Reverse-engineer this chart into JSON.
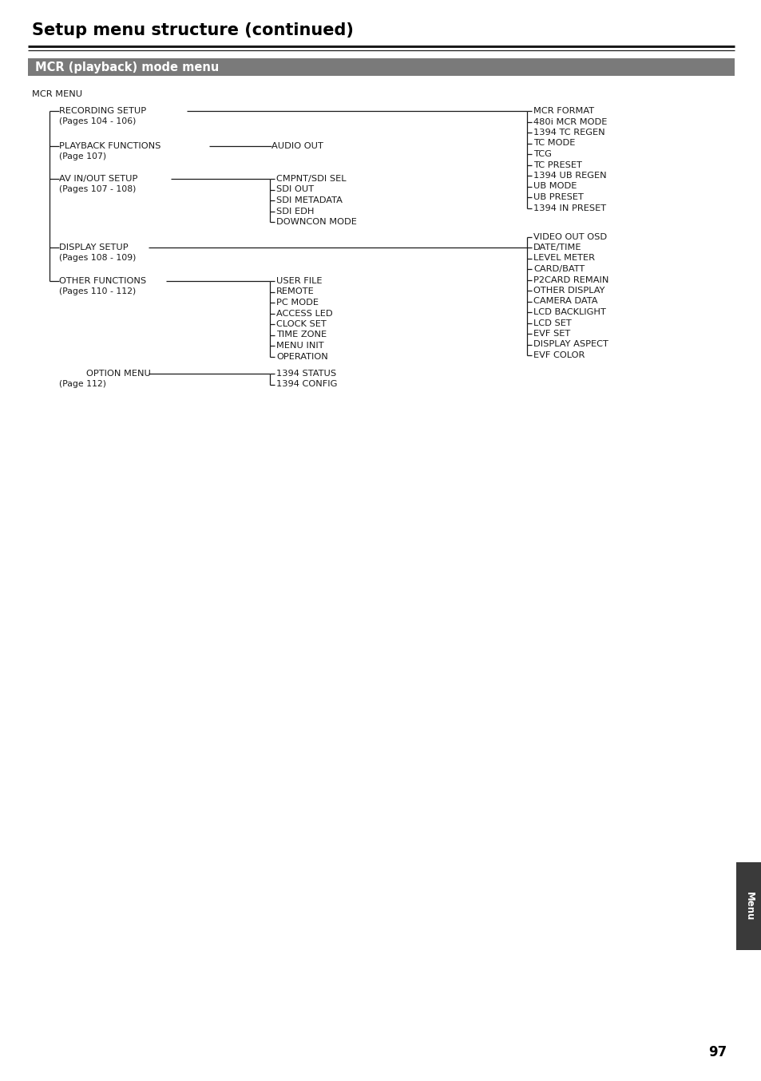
{
  "title": "Setup menu structure (continued)",
  "section_title": "MCR (playback) mode menu",
  "bg_color": "#ffffff",
  "section_bg": "#7a7a7a",
  "section_text_color": "#ffffff",
  "page_number": "97",
  "tab_text": "Menu",
  "tab_bg": "#3a3a3a",
  "figsize": [
    9.54,
    13.54
  ],
  "dpi": 100,
  "text_color": "#1a1a1a"
}
